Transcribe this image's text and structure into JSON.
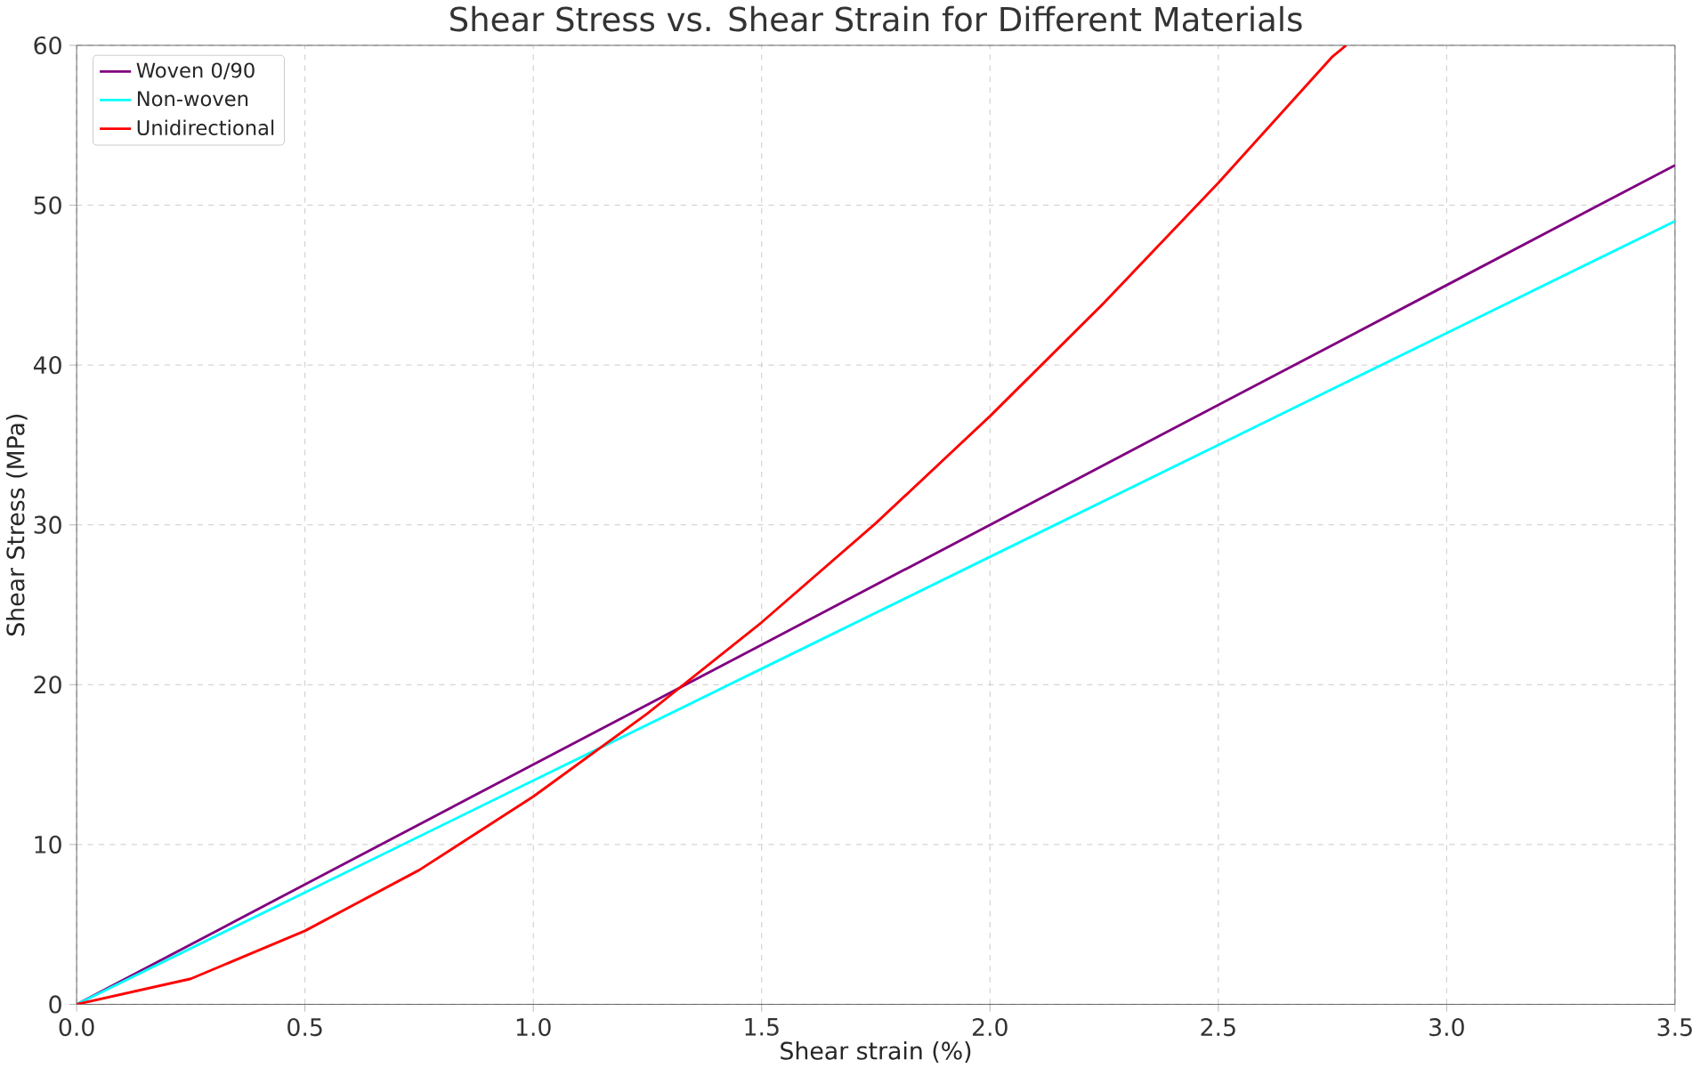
{
  "chart_data": {
    "type": "line",
    "title": "Shear Stress vs. Shear Strain for Different Materials",
    "xlabel": "Shear strain (%)",
    "ylabel": "Shear Stress (MPa)",
    "series": [
      {
        "name": "Woven 0/90",
        "color": "#800080",
        "x": [
          0,
          0.5,
          1.0,
          1.5,
          2.0,
          2.5,
          3.0,
          3.5
        ],
        "values": [
          0,
          7.5,
          15,
          22.5,
          30,
          37.5,
          45,
          52.5
        ]
      },
      {
        "name": "Non-woven",
        "color": "#00ffff",
        "x": [
          0,
          0.5,
          1.0,
          1.5,
          2.0,
          2.5,
          3.0,
          3.5
        ],
        "values": [
          0,
          7,
          14,
          21,
          28,
          35,
          42,
          49
        ]
      },
      {
        "name": "Unidirectional",
        "color": "#ff0000",
        "x": [
          0,
          0.25,
          0.5,
          0.75,
          1.0,
          1.25,
          1.5,
          1.75,
          2.0,
          2.25,
          2.5,
          2.75,
          2.78
        ],
        "values": [
          0,
          1.6,
          4.6,
          8.4,
          13,
          18.2,
          23.9,
          30.1,
          36.8,
          43.9,
          51.4,
          59.3,
          60
        ]
      }
    ],
    "xlim": [
      0,
      3.5
    ],
    "ylim": [
      0,
      60
    ],
    "xticks": [
      {
        "value": 0,
        "label": "0.0"
      },
      0.5,
      {
        "value": 1,
        "label": "1.0"
      },
      1.5,
      {
        "value": 2,
        "label": "2.0"
      },
      2.5,
      {
        "value": 3,
        "label": "3.0"
      },
      3.5
    ],
    "yticks": [
      0,
      10,
      20,
      30,
      40,
      50,
      60
    ],
    "grid": true,
    "legend": "top left",
    "line_style": "solid"
  }
}
